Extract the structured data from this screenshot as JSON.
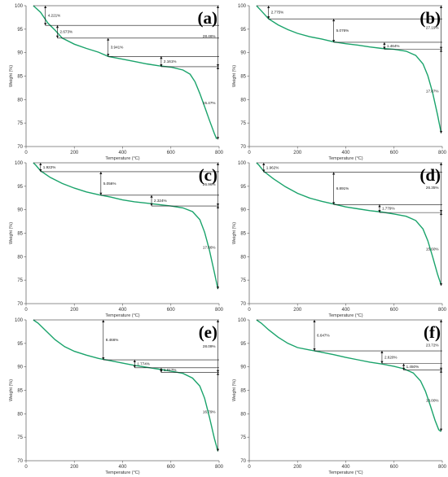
{
  "figure": {
    "curve_color": "#1aa36b",
    "axis_color": "#6a6a6a"
  },
  "chart_data": [
    {
      "type": "line",
      "panel_label": "(a)",
      "xlabel": "Temperature (°C)",
      "ylabel": "Weight (%)",
      "xlim": [
        0,
        800
      ],
      "ylim": [
        70,
        100
      ],
      "xticks": [
        0,
        200,
        400,
        600,
        800
      ],
      "yticks": [
        70,
        75,
        80,
        85,
        90,
        95,
        100
      ],
      "x": [
        30,
        60,
        90,
        120,
        150,
        200,
        250,
        300,
        340,
        400,
        450,
        500,
        550,
        600,
        650,
        680,
        700,
        720,
        740,
        760,
        780,
        790
      ],
      "y": [
        100,
        98.6,
        96.3,
        94.8,
        93.1,
        91.8,
        90.9,
        90.1,
        89.2,
        88.6,
        88.1,
        87.6,
        87.2,
        86.9,
        86.3,
        85.4,
        83.8,
        81.3,
        78.5,
        75.6,
        72.8,
        71.6
      ],
      "annotations": [
        {
          "label": "4.221%",
          "x": 80,
          "y_top": 100,
          "y_bottom": 95.8
        },
        {
          "label": "2.673%",
          "x": 130,
          "y_top": 95.8,
          "y_bottom": 93.1
        },
        {
          "label": "3.941%",
          "x": 340,
          "y_top": 93.1,
          "y_bottom": 89.2
        },
        {
          "label": "2.161%",
          "x": 560,
          "y_top": 89.2,
          "y_bottom": 87.0
        },
        {
          "label": "28.46%",
          "x": 795,
          "y_top": 100,
          "y_bottom": 87.0
        },
        {
          "label": "15.47%",
          "x": 795,
          "y_top": 87.0,
          "y_bottom": 71.5
        }
      ]
    },
    {
      "type": "line",
      "panel_label": "(b)",
      "xlabel": "Temperature (°C)",
      "ylabel": "Weight (%)",
      "xlim": [
        0,
        800
      ],
      "ylim": [
        70,
        100
      ],
      "xticks": [
        0,
        200,
        400,
        600,
        800
      ],
      "yticks": [
        70,
        75,
        80,
        85,
        90,
        95,
        100
      ],
      "x": [
        30,
        50,
        80,
        120,
        160,
        200,
        250,
        300,
        350,
        400,
        450,
        500,
        550,
        600,
        650,
        690,
        720,
        740,
        760,
        780,
        795
      ],
      "y": [
        100,
        98.9,
        97.2,
        95.9,
        94.9,
        94.1,
        93.4,
        92.9,
        92.3,
        91.9,
        91.6,
        91.2,
        90.9,
        90.7,
        90.3,
        89.4,
        87.6,
        85.1,
        81.5,
        76.8,
        73.0
      ],
      "annotations": [
        {
          "label": "2.775%",
          "x": 80,
          "y_top": 100,
          "y_bottom": 97.2
        },
        {
          "label": "5.076%",
          "x": 350,
          "y_top": 97.2,
          "y_bottom": 92.2
        },
        {
          "label": "1.464%",
          "x": 560,
          "y_top": 92.2,
          "y_bottom": 90.7
        },
        {
          "label": "27.19%",
          "x": 795,
          "y_top": 100,
          "y_bottom": 90.7
        },
        {
          "label": "17.87%",
          "x": 795,
          "y_top": 90.7,
          "y_bottom": 72.8
        }
      ]
    },
    {
      "type": "line",
      "panel_label": "(c)",
      "xlabel": "Temperature (°C)",
      "ylabel": "Weight (%)",
      "xlim": [
        0,
        800
      ],
      "ylim": [
        70,
        100
      ],
      "xticks": [
        0,
        200,
        400,
        600,
        800
      ],
      "yticks": [
        70,
        75,
        80,
        85,
        90,
        95,
        100
      ],
      "x": [
        30,
        40,
        60,
        100,
        150,
        200,
        250,
        300,
        350,
        400,
        450,
        500,
        550,
        600,
        650,
        690,
        720,
        740,
        760,
        780,
        795
      ],
      "y": [
        100,
        99.5,
        98.3,
        96.9,
        95.6,
        94.6,
        93.8,
        93.2,
        92.7,
        92.1,
        91.7,
        91.4,
        91.1,
        90.8,
        90.4,
        89.6,
        87.9,
        85.2,
        81.4,
        76.7,
        73.1
      ],
      "annotations": [
        {
          "label": "1.922%",
          "x": 60,
          "y_top": 100,
          "y_bottom": 98.1
        },
        {
          "label": "5.056%",
          "x": 310,
          "y_top": 98.1,
          "y_bottom": 93.1
        },
        {
          "label": "2.324%",
          "x": 520,
          "y_top": 93.1,
          "y_bottom": 90.8
        },
        {
          "label": "26.96%",
          "x": 795,
          "y_top": 100,
          "y_bottom": 90.8
        },
        {
          "label": "17.66%",
          "x": 795,
          "y_top": 90.8,
          "y_bottom": 73.1
        }
      ]
    },
    {
      "type": "line",
      "panel_label": "(d)",
      "xlabel": "Temperature (°C)",
      "ylabel": "Weight (%)",
      "xlim": [
        0,
        800
      ],
      "ylim": [
        70,
        100
      ],
      "xticks": [
        0,
        200,
        400,
        600,
        800
      ],
      "yticks": [
        70,
        75,
        80,
        85,
        90,
        95,
        100
      ],
      "x": [
        30,
        40,
        60,
        100,
        150,
        200,
        250,
        300,
        350,
        400,
        450,
        500,
        550,
        600,
        650,
        690,
        720,
        740,
        760,
        780,
        795
      ],
      "y": [
        100,
        99.5,
        98.2,
        96.6,
        94.9,
        93.5,
        92.5,
        91.8,
        91.2,
        90.6,
        90.2,
        89.8,
        89.5,
        89.1,
        88.6,
        87.7,
        85.9,
        83.4,
        80.0,
        76.3,
        74.0
      ],
      "annotations": [
        {
          "label": "1.962%",
          "x": 60,
          "y_top": 100,
          "y_bottom": 98.0
        },
        {
          "label": "6.891%",
          "x": 350,
          "y_top": 98.0,
          "y_bottom": 91.1
        },
        {
          "label": "1.779%",
          "x": 540,
          "y_top": 91.1,
          "y_bottom": 89.4
        },
        {
          "label": "26.35%",
          "x": 795,
          "y_top": 100,
          "y_bottom": 89.4
        },
        {
          "label": "15.60%",
          "x": 795,
          "y_top": 89.4,
          "y_bottom": 73.8
        }
      ]
    },
    {
      "type": "line",
      "panel_label": "(e)",
      "xlabel": "Temperature (°C)",
      "ylabel": "Weight (%)",
      "xlim": [
        0,
        800
      ],
      "ylim": [
        70,
        100
      ],
      "xticks": [
        0,
        200,
        400,
        600,
        800
      ],
      "yticks": [
        70,
        75,
        80,
        85,
        90,
        95,
        100
      ],
      "x": [
        30,
        50,
        80,
        120,
        160,
        200,
        250,
        300,
        340,
        400,
        450,
        500,
        550,
        600,
        650,
        690,
        720,
        740,
        760,
        780,
        795
      ],
      "y": [
        100,
        99.3,
        97.8,
        95.8,
        94.3,
        93.3,
        92.5,
        91.8,
        91.4,
        90.8,
        90.3,
        89.9,
        89.5,
        89.1,
        88.6,
        87.6,
        85.9,
        83.3,
        79.3,
        74.8,
        72.0
      ],
      "annotations": [
        {
          "label": "8.466%",
          "x": 320,
          "y_top": 100,
          "y_bottom": 91.5
        },
        {
          "label": "1.774%",
          "x": 450,
          "y_top": 91.5,
          "y_bottom": 89.8
        },
        {
          "label": "1.017%",
          "x": 560,
          "y_top": 89.8,
          "y_bottom": 88.8
        },
        {
          "label": "28.09%",
          "x": 795,
          "y_top": 100,
          "y_bottom": 88.8
        },
        {
          "label": "16.79%",
          "x": 795,
          "y_top": 88.8,
          "y_bottom": 72.0
        }
      ]
    },
    {
      "type": "line",
      "panel_label": "(f)",
      "xlabel": "Temperature (°C)",
      "ylabel": "Weight (%)",
      "xlim": [
        0,
        800
      ],
      "ylim": [
        70,
        100
      ],
      "xticks": [
        0,
        200,
        400,
        600,
        800
      ],
      "yticks": [
        70,
        75,
        80,
        85,
        90,
        95,
        100
      ],
      "x": [
        30,
        50,
        80,
        120,
        160,
        200,
        250,
        280,
        350,
        400,
        450,
        500,
        550,
        600,
        640,
        680,
        710,
        730,
        750,
        770,
        785,
        795
      ],
      "y": [
        100,
        99.3,
        97.9,
        96.3,
        95.0,
        94.1,
        93.6,
        93.3,
        92.6,
        92.0,
        91.5,
        91.0,
        90.6,
        90.1,
        89.6,
        88.7,
        87.0,
        84.8,
        81.8,
        78.6,
        76.6,
        76.2
      ],
      "annotations": [
        {
          "label": "6.647%",
          "x": 270,
          "y_top": 100,
          "y_bottom": 93.4
        },
        {
          "label": "2.620%",
          "x": 550,
          "y_top": 93.4,
          "y_bottom": 90.7
        },
        {
          "label": "1.450%",
          "x": 640,
          "y_top": 90.7,
          "y_bottom": 89.3
        },
        {
          "label": "23.72%",
          "x": 795,
          "y_top": 100,
          "y_bottom": 89.3
        },
        {
          "label": "13.00%",
          "x": 795,
          "y_top": 89.3,
          "y_bottom": 76.3
        }
      ]
    }
  ]
}
